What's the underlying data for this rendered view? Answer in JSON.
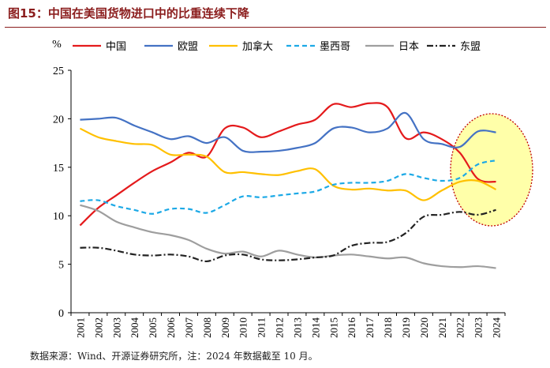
{
  "title": "图15：中国在美国货物进口中的比重连续下降",
  "source": "数据来源：Wind、开源证券研究所，注：2024 年数据截至 10 月。",
  "chart_data": {
    "type": "line",
    "ylabel": "%",
    "ylim": [
      0,
      25
    ],
    "yticks": [
      0,
      5,
      10,
      15,
      20,
      25
    ],
    "legend_position": "top",
    "x": [
      2001,
      2002,
      2003,
      2004,
      2005,
      2006,
      2007,
      2008,
      2009,
      2010,
      2011,
      2012,
      2013,
      2014,
      2015,
      2016,
      2017,
      2018,
      2019,
      2020,
      2021,
      2022,
      2023,
      2024
    ],
    "series": [
      {
        "name": "中国",
        "color": "#e41a1c",
        "dash": "",
        "values": [
          9.0,
          10.8,
          12.1,
          13.4,
          14.6,
          15.5,
          16.5,
          16.1,
          19.0,
          19.1,
          18.1,
          18.7,
          19.4,
          19.9,
          21.5,
          21.2,
          21.6,
          21.2,
          18.0,
          18.6,
          17.9,
          16.5,
          13.8,
          13.5
        ]
      },
      {
        "name": "欧盟",
        "color": "#4472c4",
        "dash": "",
        "values": [
          19.9,
          20.0,
          20.1,
          19.3,
          18.6,
          17.9,
          18.2,
          17.5,
          18.1,
          16.7,
          16.6,
          16.7,
          17.0,
          17.5,
          19.0,
          19.1,
          18.6,
          19.0,
          20.6,
          17.9,
          17.4,
          17.1,
          18.7,
          18.6
        ]
      },
      {
        "name": "加拿大",
        "color": "#ffc000",
        "dash": "",
        "values": [
          19.0,
          18.1,
          17.7,
          17.4,
          17.3,
          16.3,
          16.3,
          16.1,
          14.5,
          14.5,
          14.3,
          14.2,
          14.6,
          14.8,
          13.1,
          12.7,
          12.8,
          12.6,
          12.6,
          11.6,
          12.6,
          13.5,
          13.6,
          12.7
        ]
      },
      {
        "name": "墨西哥",
        "color": "#1ca9e6",
        "dash": "6,4",
        "values": [
          11.5,
          11.6,
          11.0,
          10.6,
          10.2,
          10.7,
          10.7,
          10.3,
          11.1,
          12.0,
          11.9,
          12.1,
          12.3,
          12.5,
          13.2,
          13.4,
          13.4,
          13.6,
          14.3,
          13.9,
          13.6,
          13.9,
          15.3,
          15.7
        ]
      },
      {
        "name": "日本",
        "color": "#9e9e9e",
        "dash": "",
        "values": [
          11.1,
          10.5,
          9.4,
          8.8,
          8.3,
          8.0,
          7.5,
          6.6,
          6.1,
          6.3,
          5.8,
          6.4,
          6.0,
          5.7,
          5.9,
          6.0,
          5.8,
          5.6,
          5.7,
          5.1,
          4.8,
          4.7,
          4.8,
          4.6
        ]
      },
      {
        "name": "东盟",
        "color": "#222222",
        "dash": "8,3,2,3",
        "values": [
          6.7,
          6.7,
          6.4,
          6.0,
          5.9,
          6.0,
          5.8,
          5.3,
          5.9,
          6.0,
          5.5,
          5.4,
          5.5,
          5.7,
          5.9,
          6.9,
          7.2,
          7.3,
          8.2,
          9.9,
          10.1,
          10.4,
          10.1,
          10.6
        ]
      }
    ],
    "highlight": {
      "fill": "#ffff8c",
      "stroke": "#c00000"
    }
  }
}
